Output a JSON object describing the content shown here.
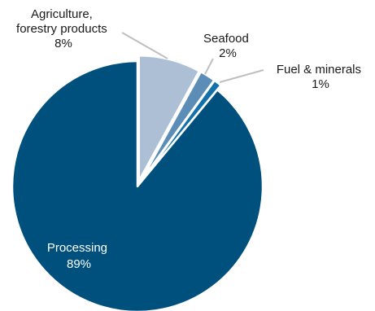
{
  "chart_data": {
    "type": "pie",
    "title": "",
    "categories": [
      "Agriculture, forestry products",
      "Seafood",
      "Fuel & minerals",
      "Processing"
    ],
    "values": [
      8,
      2,
      1,
      89
    ],
    "unit": "%",
    "labels": [
      {
        "lines": [
          "Agriculture,",
          "forestry products"
        ],
        "value_text": "8%"
      },
      {
        "lines": [
          "Seafood"
        ],
        "value_text": "2%"
      },
      {
        "lines": [
          "Fuel & minerals"
        ],
        "value_text": "1%"
      },
      {
        "lines": [
          "Processing"
        ],
        "value_text": "89%"
      }
    ],
    "colors": [
      "#adbfd4",
      "#5b8db6",
      "#1270aa",
      "#00507e"
    ],
    "legend": "none",
    "start_angle_deg": 0,
    "direction": "clockwise"
  }
}
